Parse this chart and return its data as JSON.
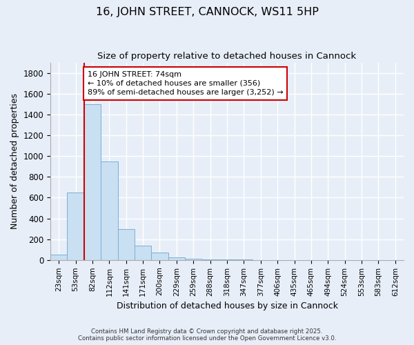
{
  "title": "16, JOHN STREET, CANNOCK, WS11 5HP",
  "subtitle": "Size of property relative to detached houses in Cannock",
  "xlabel": "Distribution of detached houses by size in Cannock",
  "ylabel": "Number of detached properties",
  "bar_color": "#c9dff2",
  "bar_edge_color": "#7aafd4",
  "background_color": "#e8eef8",
  "grid_color": "#ffffff",
  "categories": [
    "23sqm",
    "53sqm",
    "82sqm",
    "112sqm",
    "141sqm",
    "171sqm",
    "200sqm",
    "229sqm",
    "259sqm",
    "288sqm",
    "318sqm",
    "347sqm",
    "377sqm",
    "406sqm",
    "435sqm",
    "465sqm",
    "494sqm",
    "524sqm",
    "553sqm",
    "583sqm",
    "612sqm"
  ],
  "values": [
    50,
    650,
    1500,
    950,
    300,
    140,
    70,
    25,
    15,
    5,
    5,
    3,
    2,
    2,
    2,
    2,
    2,
    2,
    1,
    1,
    1
  ],
  "ylim": [
    0,
    1900
  ],
  "yticks": [
    0,
    200,
    400,
    600,
    800,
    1000,
    1200,
    1400,
    1600,
    1800
  ],
  "vline_x": 1.5,
  "annotation_text": "16 JOHN STREET: 74sqm\n← 10% of detached houses are smaller (356)\n89% of semi-detached houses are larger (3,252) →",
  "annotation_box_color": "#ffffff",
  "annotation_box_edge_color": "#cc0000",
  "vline_color": "#cc0000",
  "footer_line1": "Contains HM Land Registry data © Crown copyright and database right 2025.",
  "footer_line2": "Contains public sector information licensed under the Open Government Licence v3.0."
}
